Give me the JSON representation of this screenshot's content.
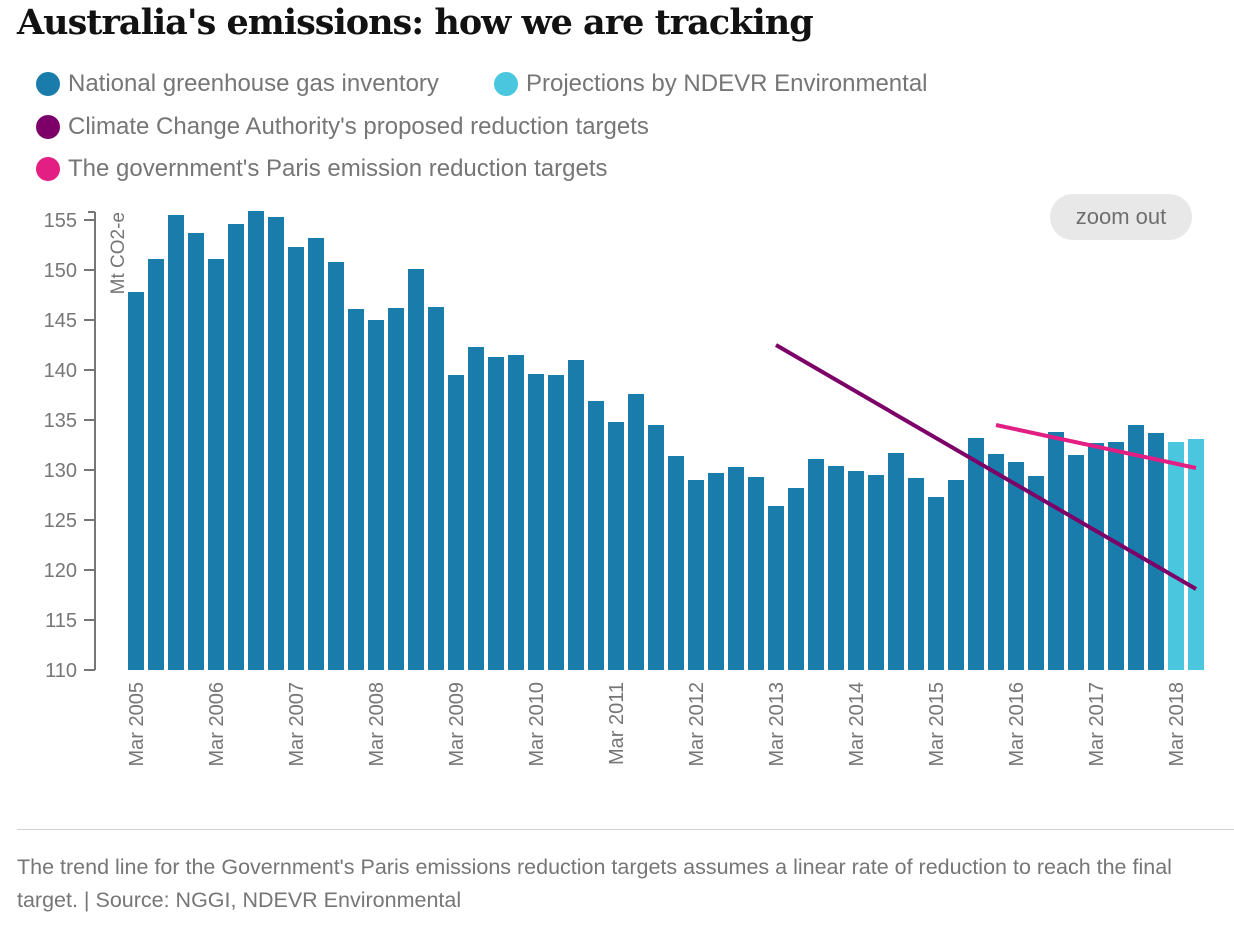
{
  "title": "Australia's emissions: how we are tracking",
  "legend": [
    {
      "label": "National greenhouse gas inventory",
      "color": "#197caa",
      "icon": "circle"
    },
    {
      "label": "Projections by NDEVR Environmental",
      "color": "#4bc6df",
      "icon": "circle"
    },
    {
      "label": "Climate Change Authority's proposed reduction targets",
      "color": "#7d0068",
      "icon": "circle"
    },
    {
      "label": "The government's Paris emission reduction targets",
      "color": "#e31f83",
      "icon": "circle"
    }
  ],
  "zoom_button": {
    "label": "zoom out"
  },
  "footnote": "The trend line for the Government's Paris emissions reduction targets assumes a linear rate of reduction to reach the final target. | Source: NGGI, NDEVR Environmental",
  "chart_data": {
    "type": "bar",
    "title": "Australia's emissions: how we are tracking",
    "xlabel": "",
    "ylabel": "Mt CO2-e",
    "ylim": [
      110,
      155.8
    ],
    "yticks": [
      110,
      115,
      120,
      125,
      130,
      135,
      140,
      145,
      150,
      155
    ],
    "grid": false,
    "legend_position": "top-left",
    "x_tick_labels": [
      "Mar 2005",
      "Mar 2006",
      "Mar 2007",
      "Mar 2008",
      "Mar 2009",
      "Mar 2010",
      "Mar 2011",
      "Mar 2012",
      "Mar 2013",
      "Mar 2014",
      "Mar 2015",
      "Mar 2016",
      "Mar 2017",
      "Mar 2018"
    ],
    "categories": [
      "Mar 2005",
      "Jun 2005",
      "Sep 2005",
      "Dec 2005",
      "Mar 2006",
      "Jun 2006",
      "Sep 2006",
      "Dec 2006",
      "Mar 2007",
      "Jun 2007",
      "Sep 2007",
      "Dec 2007",
      "Mar 2008",
      "Jun 2008",
      "Sep 2008",
      "Dec 2008",
      "Mar 2009",
      "Jun 2009",
      "Sep 2009",
      "Dec 2009",
      "Mar 2010",
      "Jun 2010",
      "Sep 2010",
      "Dec 2010",
      "Mar 2011",
      "Jun 2011",
      "Sep 2011",
      "Dec 2011",
      "Mar 2012",
      "Jun 2012",
      "Sep 2012",
      "Dec 2012",
      "Mar 2013",
      "Jun 2013",
      "Sep 2013",
      "Dec 2013",
      "Mar 2014",
      "Jun 2014",
      "Sep 2014",
      "Dec 2014",
      "Mar 2015",
      "Jun 2015",
      "Sep 2015",
      "Dec 2015",
      "Mar 2016",
      "Jun 2016",
      "Sep 2016",
      "Dec 2016",
      "Mar 2017",
      "Jun 2017",
      "Sep 2017",
      "Dec 2017",
      "Mar 2018",
      "Jun 2018"
    ],
    "series": [
      {
        "name": "National greenhouse gas inventory",
        "type": "bar",
        "color": "#197caa",
        "values": [
          147.8,
          151.1,
          155.5,
          153.7,
          151.1,
          154.6,
          155.9,
          155.3,
          152.3,
          153.2,
          150.8,
          146.1,
          145.0,
          146.2,
          150.1,
          146.3,
          139.5,
          142.3,
          141.3,
          141.5,
          139.6,
          139.5,
          141.0,
          136.9,
          134.8,
          137.6,
          134.5,
          131.4,
          129.0,
          129.7,
          130.3,
          129.3,
          126.4,
          128.2,
          131.1,
          130.4,
          129.9,
          129.5,
          131.7,
          129.2,
          127.3,
          129.0,
          133.2,
          131.6,
          130.8,
          129.4,
          133.8,
          131.5,
          132.7,
          132.8,
          134.5,
          133.7,
          null,
          null
        ]
      },
      {
        "name": "Projections by NDEVR Environmental",
        "type": "bar",
        "color": "#4bc6df",
        "values": [
          null,
          null,
          null,
          null,
          null,
          null,
          null,
          null,
          null,
          null,
          null,
          null,
          null,
          null,
          null,
          null,
          null,
          null,
          null,
          null,
          null,
          null,
          null,
          null,
          null,
          null,
          null,
          null,
          null,
          null,
          null,
          null,
          null,
          null,
          null,
          null,
          null,
          null,
          null,
          null,
          null,
          null,
          null,
          null,
          null,
          null,
          null,
          null,
          null,
          null,
          null,
          null,
          132.8,
          133.1
        ]
      },
      {
        "name": "Climate Change Authority's proposed reduction targets",
        "type": "line",
        "color": "#7d0068",
        "points": [
          {
            "x": "Mar 2013",
            "y": 142.5
          },
          {
            "x": "Jun 2018",
            "y": 118.1
          }
        ]
      },
      {
        "name": "The government's Paris emission reduction targets",
        "type": "line",
        "color": "#e31f83",
        "points": [
          {
            "x": "Dec 2015",
            "y": 134.5
          },
          {
            "x": "Jun 2018",
            "y": 130.2
          }
        ]
      }
    ]
  }
}
